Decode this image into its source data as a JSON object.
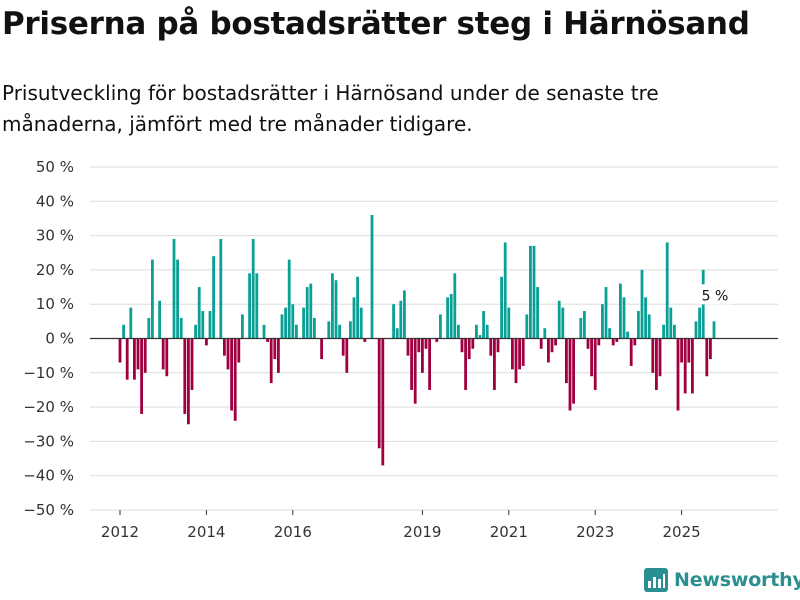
{
  "header": {
    "title": "Priserna på bostadsrätter steg i Härnösand",
    "subtitle": "Prisutveckling för bostadsrätter i Härnösand under de senaste tre månaderna, jämfört med tre månader tidigare."
  },
  "brand": {
    "name": "Newsworthy",
    "icon": "bar-chart-logo-icon"
  },
  "colors": {
    "positive": "#0aa096",
    "negative": "#a0003f",
    "brand": "#2a8f90"
  },
  "chart_data": {
    "type": "bar",
    "ylabel": "",
    "xlabel": "",
    "ylim": [
      -50,
      50
    ],
    "y_ticks": [
      50,
      40,
      30,
      20,
      10,
      0,
      -10,
      -20,
      -30,
      -40,
      -50
    ],
    "y_tick_suffix": " %",
    "x_ticks": [
      {
        "label": "2012",
        "x": 2012
      },
      {
        "label": "2014",
        "x": 2014
      },
      {
        "label": "2016",
        "x": 2016
      },
      {
        "label": "2019",
        "x": 2019
      },
      {
        "label": "2021",
        "x": 2021
      },
      {
        "label": "2023",
        "x": 2023
      },
      {
        "label": "2025",
        "x": 2025
      }
    ],
    "start": {
      "year": 2012,
      "month": 1
    },
    "annotation": {
      "text": "5 %",
      "year": 2025,
      "month": 10
    },
    "values": [
      -7,
      4,
      -12,
      9,
      -12,
      -9,
      -22,
      -10,
      6,
      23,
      0,
      11,
      -9,
      -11,
      0,
      29,
      23,
      6,
      -22,
      -25,
      -15,
      4,
      15,
      8,
      -2,
      8,
      24,
      0,
      29,
      -5,
      -9,
      -21,
      -24,
      -7,
      7,
      0,
      19,
      29,
      19,
      0,
      4,
      -1,
      -13,
      -6,
      -10,
      7,
      9,
      23,
      10,
      4,
      0,
      9,
      15,
      16,
      6,
      0,
      -6,
      0,
      5,
      19,
      17,
      4,
      -5,
      -10,
      5,
      12,
      18,
      9,
      -1,
      0,
      36,
      0,
      -32,
      -37,
      0,
      0,
      10,
      3,
      11,
      14,
      -5,
      -15,
      -19,
      -4,
      -10,
      -3,
      -15,
      0,
      -1,
      7,
      0,
      12,
      13,
      19,
      4,
      -4,
      -15,
      -6,
      -3,
      4,
      1,
      8,
      4,
      -5,
      -15,
      -4,
      18,
      28,
      9,
      -9,
      -13,
      -9,
      -8,
      7,
      27,
      27,
      15,
      -3,
      3,
      -7,
      -4,
      -2,
      11,
      9,
      -13,
      -21,
      -19,
      0,
      6,
      8,
      -3,
      -11,
      -15,
      -2,
      10,
      15,
      3,
      -2,
      -1,
      16,
      12,
      2,
      -8,
      -2,
      8,
      20,
      12,
      7,
      -10,
      -15,
      -11,
      4,
      28,
      9,
      4,
      -21,
      -7,
      -16,
      -7,
      -16,
      5,
      9,
      20,
      -11,
      -6,
      5
    ]
  }
}
